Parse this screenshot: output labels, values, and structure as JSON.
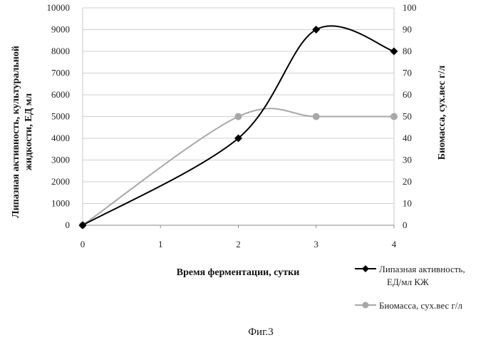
{
  "chart_data": {
    "type": "line",
    "x": [
      0,
      1,
      2,
      3,
      4
    ],
    "x_ticks": [
      "0",
      "1",
      "2",
      "3",
      "4"
    ],
    "xlabel": "Время ферментации, сутки",
    "ylabel_left": [
      "Липазная активность, культуральной",
      "жидкости, ЕД мл"
    ],
    "ylabel_right": "Биомасса, сух.вес г/л",
    "ylim_left": [
      0,
      10000
    ],
    "ylim_right": [
      0,
      100
    ],
    "y_ticks_left": [
      "0",
      "1000",
      "2000",
      "3000",
      "4000",
      "5000",
      "6000",
      "7000",
      "8000",
      "9000",
      "10000"
    ],
    "y_ticks_right": [
      "0",
      "10",
      "20",
      "30",
      "40",
      "50",
      "60",
      "70",
      "80",
      "90",
      "100"
    ],
    "grid": true,
    "series": [
      {
        "name_lines": [
          "Липазная активность,",
          "ЕД/мл КЖ"
        ],
        "axis": "left",
        "x": [
          0,
          2,
          3,
          4
        ],
        "values": [
          0,
          4000,
          9000,
          8000
        ],
        "color": "#000000",
        "marker": "diamond"
      },
      {
        "name_lines": [
          "Биомасса, сух.вес г/л"
        ],
        "axis": "right",
        "x": [
          0,
          2,
          3,
          4
        ],
        "values": [
          0,
          50,
          50,
          50
        ],
        "color": "#a8a8a8",
        "marker": "circle"
      }
    ],
    "legend_position": "bottom-right"
  },
  "caption": "Фиг.3"
}
